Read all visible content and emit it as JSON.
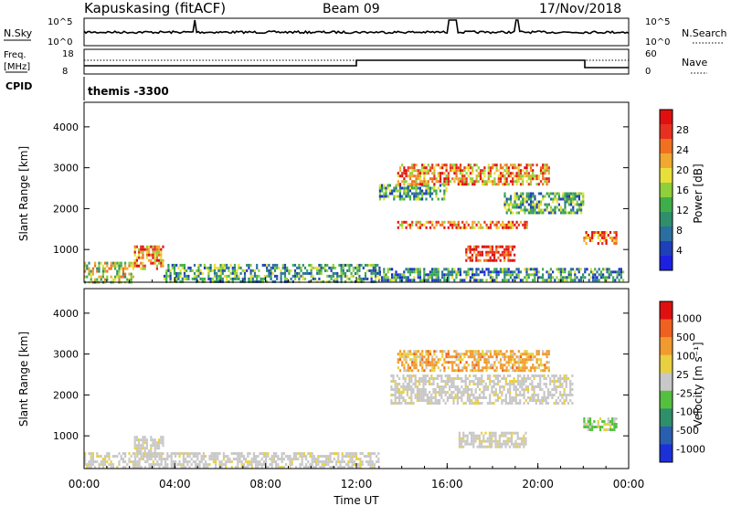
{
  "header": {
    "station": "Kapuskasing (fitACF)",
    "beam": "Beam 09",
    "date": "17/Nov/2018"
  },
  "top_panels": {
    "nsky_label": "N.Sky",
    "nsky_ticks": [
      "10^5",
      "10^0"
    ],
    "nsearch_label": "N.Search",
    "nsearch_ticks": [
      "10^5",
      "10^0"
    ],
    "freq_label": "Freq.",
    "freq_unit": "[MHz]",
    "freq_ticks": [
      "18",
      "8"
    ],
    "nave_label": "Nave",
    "nave_ticks": [
      "60",
      "0"
    ],
    "cpid_label": "CPID",
    "cpid_text": "themis -3300"
  },
  "chart_data": [
    {
      "type": "heatmap",
      "title": "",
      "xlabel": "",
      "ylabel": "Slant Range [km]",
      "xlim": [
        "00:00",
        "24:00"
      ],
      "ylim": [
        200,
        4600
      ],
      "y_ticks": [
        "1000",
        "2000",
        "3000",
        "4000"
      ],
      "colorbar": {
        "label": "Power [dB]",
        "ticks": [
          "4",
          "8",
          "12",
          "16",
          "20",
          "24",
          "28"
        ],
        "colors": [
          "#1c20e0",
          "#1f3fb8",
          "#2a6fa0",
          "#2f8f6a",
          "#3fae4a",
          "#8fd03a",
          "#e8e03a",
          "#f0a830",
          "#f07020",
          "#e83020",
          "#e01010"
        ]
      },
      "regions": [
        {
          "t0": 0.0,
          "t1": 2.2,
          "r0": 220,
          "r1": 700,
          "level": 0.55
        },
        {
          "t0": 2.2,
          "t1": 3.5,
          "r0": 500,
          "r1": 1100,
          "level": 0.75
        },
        {
          "t0": 3.5,
          "t1": 13.0,
          "r0": 220,
          "r1": 650,
          "level": 0.35
        },
        {
          "t0": 13.0,
          "t1": 16.0,
          "r0": 2200,
          "r1": 2600,
          "level": 0.35
        },
        {
          "t0": 13.8,
          "t1": 20.5,
          "r0": 2600,
          "r1": 3100,
          "level": 0.75
        },
        {
          "t0": 13.8,
          "t1": 19.5,
          "r0": 1500,
          "r1": 1700,
          "level": 0.8
        },
        {
          "t0": 16.8,
          "t1": 19.0,
          "r0": 700,
          "r1": 1100,
          "level": 0.95
        },
        {
          "t0": 18.5,
          "t1": 22.0,
          "r0": 1900,
          "r1": 2400,
          "level": 0.35
        },
        {
          "t0": 22.0,
          "t1": 23.5,
          "r0": 1150,
          "r1": 1450,
          "level": 0.85
        },
        {
          "t0": 13.0,
          "t1": 23.8,
          "r0": 220,
          "r1": 550,
          "level": 0.3
        }
      ]
    },
    {
      "type": "heatmap",
      "title": "",
      "xlabel": "Time UT",
      "ylabel": "Slant Range [km]",
      "xlim": [
        "00:00",
        "24:00"
      ],
      "ylim": [
        200,
        4600
      ],
      "x_ticks": [
        "00:00",
        "04:00",
        "08:00",
        "12:00",
        "16:00",
        "20:00",
        "00:00"
      ],
      "y_ticks": [
        "1000",
        "2000",
        "3000",
        "4000"
      ],
      "colorbar": {
        "label": "Velocity [m s⁻¹]",
        "ticks": [
          "1000",
          "500",
          "100",
          "25",
          "-25",
          "-100",
          "-500",
          "-1000"
        ],
        "colors": [
          "#1c30d8",
          "#2a5fb0",
          "#2f8f6a",
          "#55c040",
          "#c8c8c8",
          "#e8d040",
          "#f09a30",
          "#f06020",
          "#e01010"
        ]
      },
      "regions": [
        {
          "t0": 0.0,
          "t1": 13.0,
          "r0": 220,
          "r1": 600,
          "kind": "gray"
        },
        {
          "t0": 2.2,
          "t1": 3.5,
          "r0": 500,
          "r1": 1000,
          "kind": "gray"
        },
        {
          "t0": 13.8,
          "t1": 20.5,
          "r0": 2600,
          "r1": 3100,
          "kind": "orange"
        },
        {
          "t0": 13.5,
          "t1": 21.5,
          "r0": 1800,
          "r1": 2500,
          "kind": "gray"
        },
        {
          "t0": 16.5,
          "t1": 19.5,
          "r0": 700,
          "r1": 1100,
          "kind": "gray"
        },
        {
          "t0": 22.0,
          "t1": 23.5,
          "r0": 1150,
          "r1": 1450,
          "kind": "green"
        }
      ]
    }
  ]
}
